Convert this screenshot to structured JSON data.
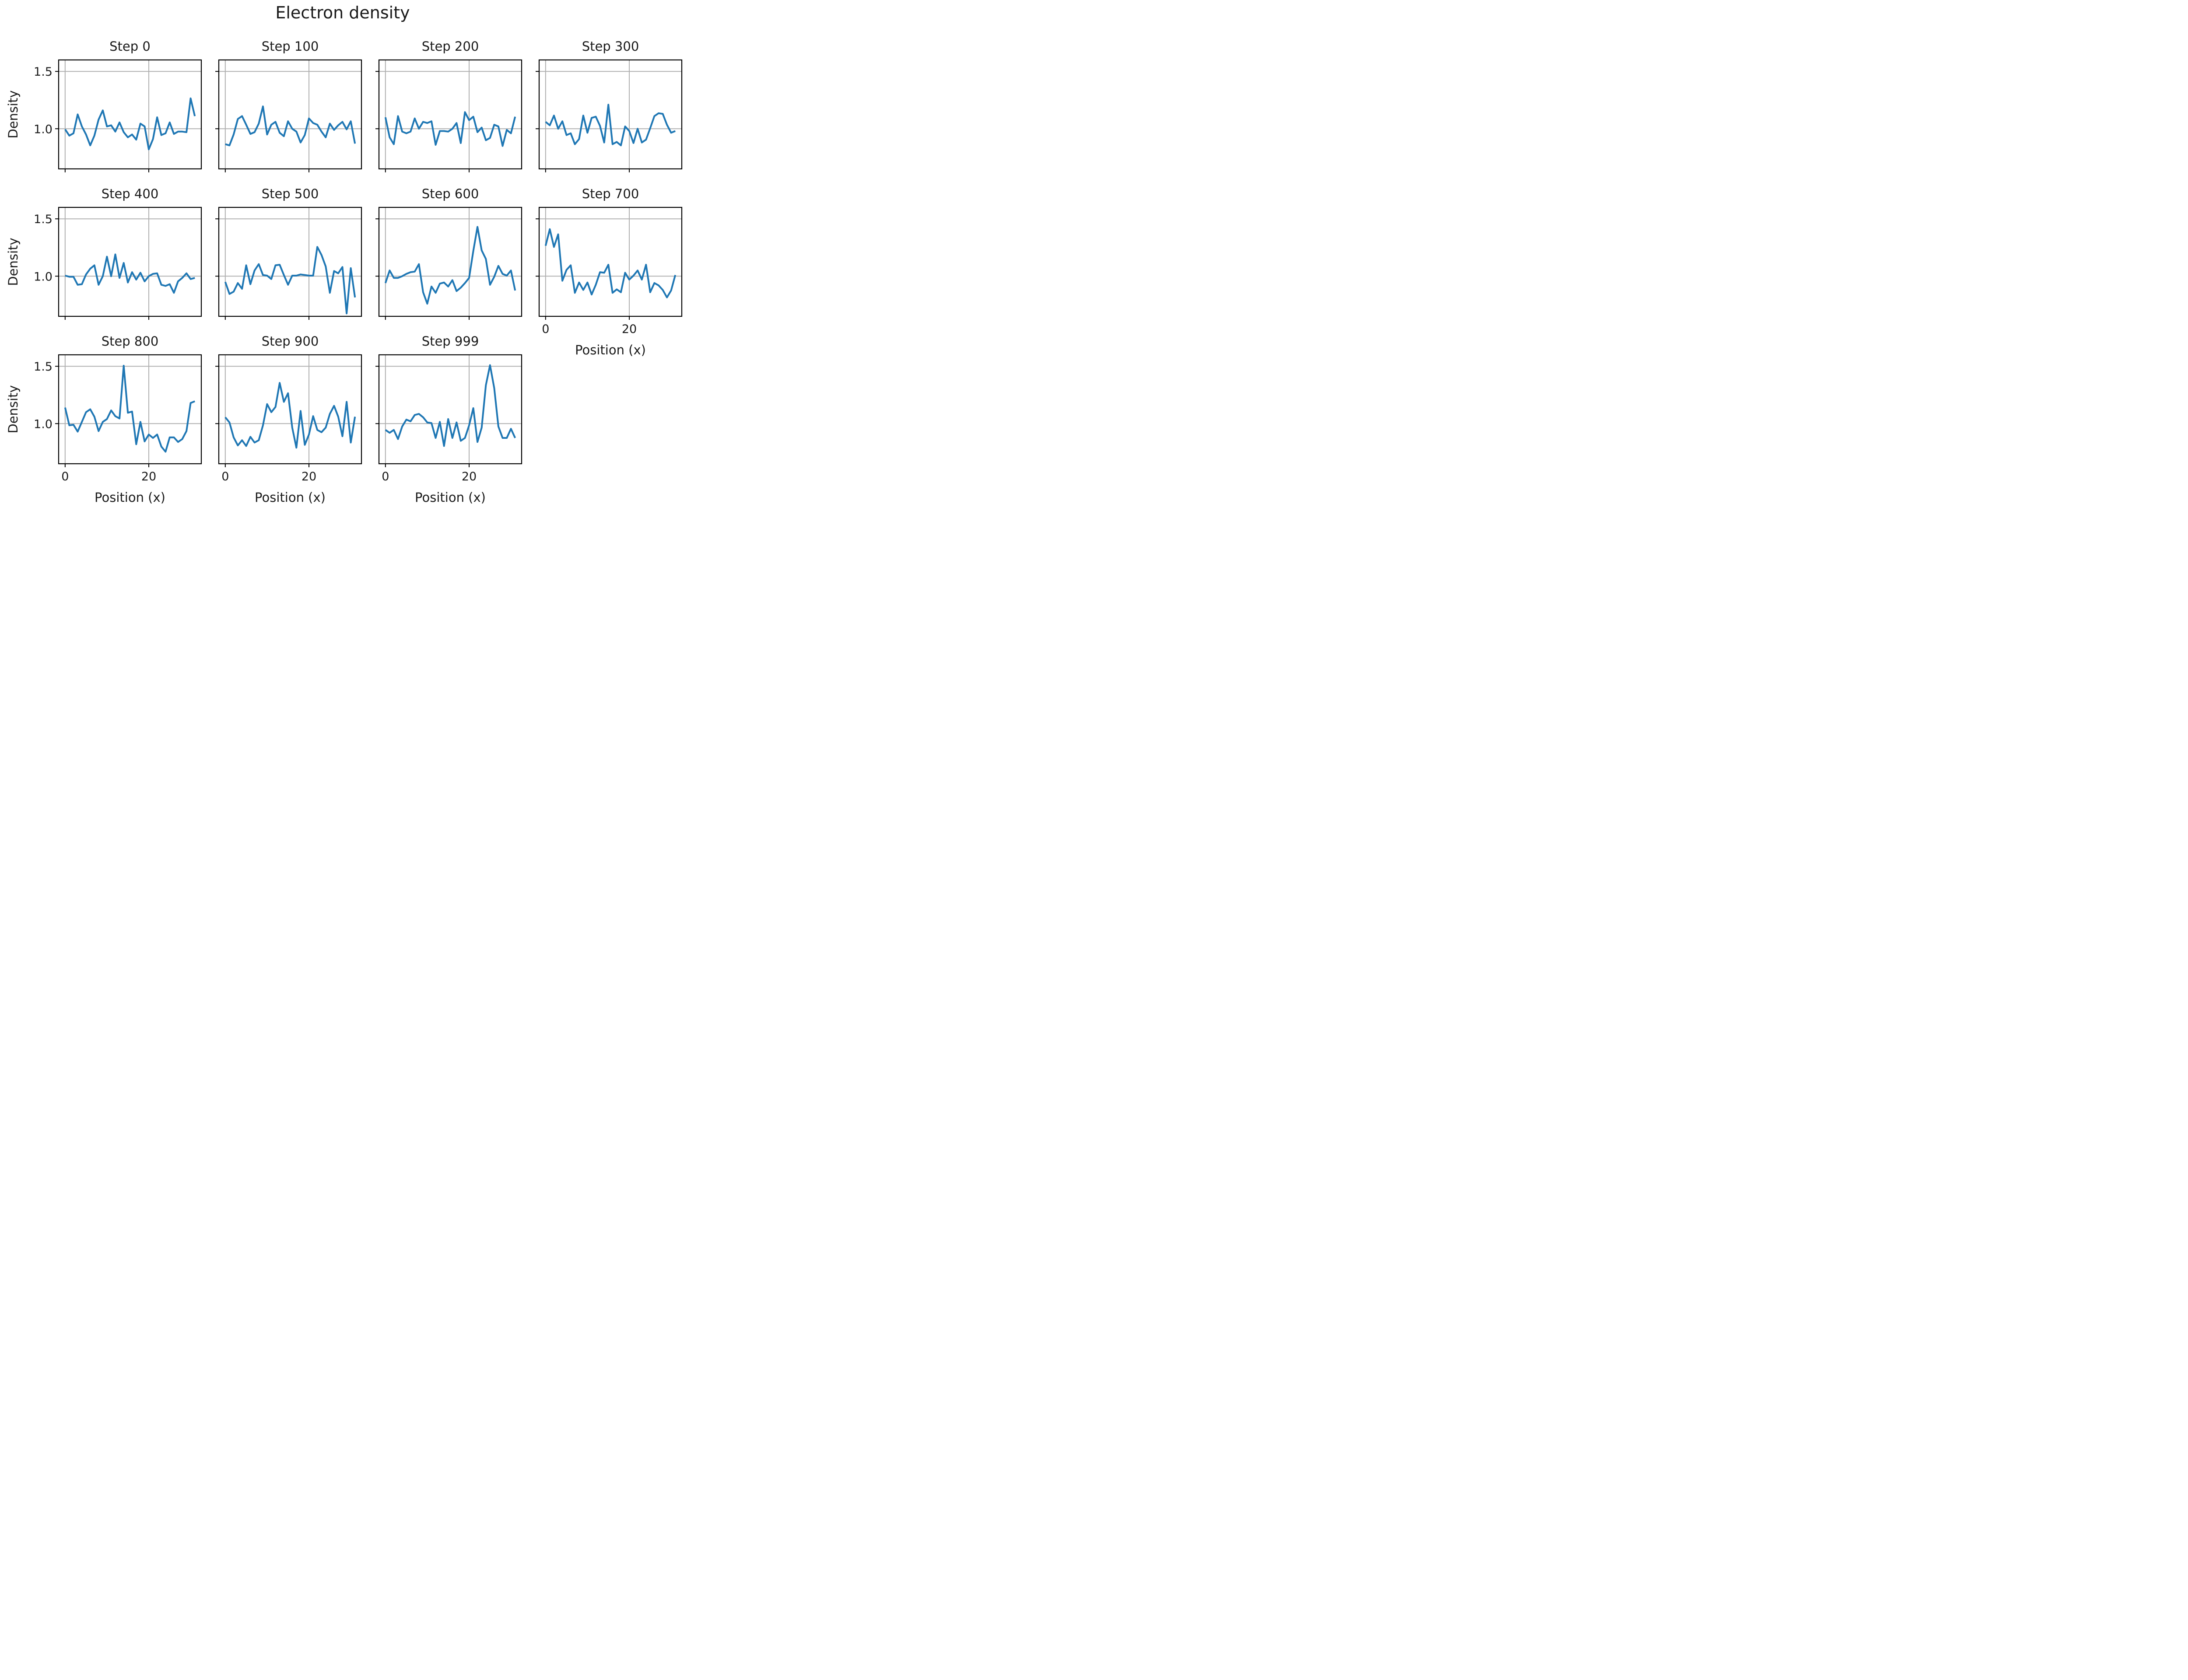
{
  "chart_data": {
    "type": "line",
    "title": "Electron density",
    "xlabel": "Position (x)",
    "ylabel": "Density",
    "xlim": [
      -1.55,
      32.55
    ],
    "ylim": [
      0.65,
      1.6
    ],
    "xticks": [
      0,
      20
    ],
    "yticks": [
      1.0,
      1.5
    ],
    "grid": true,
    "line_color": "#1f77b4",
    "x": [
      0,
      1,
      2,
      3,
      4,
      5,
      6,
      7,
      8,
      9,
      10,
      11,
      12,
      13,
      14,
      15,
      16,
      17,
      18,
      19,
      20,
      21,
      22,
      23,
      24,
      25,
      26,
      27,
      28,
      29,
      30,
      31
    ],
    "panels": [
      {
        "title": "Step 0",
        "values": [
          0.995,
          0.94,
          0.96,
          1.125,
          1.02,
          0.95,
          0.855,
          0.94,
          1.08,
          1.16,
          1.02,
          1.03,
          0.975,
          1.055,
          0.97,
          0.925,
          0.95,
          0.905,
          1.045,
          1.02,
          0.82,
          0.91,
          1.1,
          0.945,
          0.96,
          1.055,
          0.955,
          0.975,
          0.975,
          0.97,
          1.265,
          1.11
        ]
      },
      {
        "title": "Step 100",
        "values": [
          0.865,
          0.855,
          0.95,
          1.085,
          1.11,
          1.035,
          0.955,
          0.97,
          1.045,
          1.195,
          0.95,
          1.035,
          1.06,
          0.965,
          0.935,
          1.065,
          1.0,
          0.975,
          0.88,
          0.945,
          1.09,
          1.05,
          1.035,
          0.975,
          0.925,
          1.045,
          0.99,
          1.03,
          1.06,
          0.995,
          1.065,
          0.87
        ]
      },
      {
        "title": "Step 200",
        "values": [
          1.1,
          0.925,
          0.865,
          1.11,
          0.975,
          0.96,
          0.975,
          1.09,
          1.0,
          1.06,
          1.05,
          1.065,
          0.86,
          0.98,
          0.98,
          0.975,
          1.0,
          1.05,
          0.875,
          1.145,
          1.075,
          1.105,
          0.97,
          1.01,
          0.9,
          0.92,
          1.035,
          1.02,
          0.85,
          0.99,
          0.96,
          1.105
        ]
      },
      {
        "title": "Step 300",
        "values": [
          1.06,
          1.03,
          1.115,
          1.0,
          1.065,
          0.945,
          0.96,
          0.865,
          0.91,
          1.115,
          0.965,
          1.095,
          1.105,
          1.025,
          0.88,
          1.21,
          0.865,
          0.885,
          0.855,
          1.02,
          0.98,
          0.875,
          1.0,
          0.88,
          0.905,
          1.005,
          1.11,
          1.135,
          1.13,
          1.035,
          0.965,
          0.98
        ]
      },
      {
        "title": "Step 400",
        "values": [
          1.005,
          0.995,
          0.995,
          0.925,
          0.93,
          1.015,
          1.065,
          1.095,
          0.925,
          1.0,
          1.17,
          1.0,
          1.19,
          0.985,
          1.115,
          0.945,
          1.035,
          0.97,
          1.03,
          0.955,
          1.0,
          1.02,
          1.025,
          0.925,
          0.915,
          0.93,
          0.855,
          0.955,
          0.985,
          1.025,
          0.975,
          0.985
        ]
      },
      {
        "title": "Step 500",
        "values": [
          0.95,
          0.845,
          0.865,
          0.94,
          0.89,
          1.095,
          0.93,
          1.05,
          1.105,
          1.01,
          1.005,
          0.975,
          1.095,
          1.1,
          1.01,
          0.925,
          1.005,
          1.005,
          1.015,
          1.01,
          1.005,
          1.005,
          1.255,
          1.185,
          1.085,
          0.855,
          1.045,
          1.025,
          1.08,
          0.675,
          1.07,
          0.815
        ]
      },
      {
        "title": "Step 600",
        "values": [
          0.94,
          1.05,
          0.985,
          0.985,
          1.0,
          1.02,
          1.035,
          1.04,
          1.105,
          0.86,
          0.76,
          0.91,
          0.855,
          0.935,
          0.945,
          0.91,
          0.965,
          0.87,
          0.9,
          0.94,
          0.985,
          1.22,
          1.43,
          1.225,
          1.15,
          0.925,
          0.995,
          1.09,
          1.02,
          1.005,
          1.05,
          0.875
        ]
      },
      {
        "title": "Step 700",
        "values": [
          1.265,
          1.41,
          1.255,
          1.365,
          0.96,
          1.055,
          1.095,
          0.855,
          0.945,
          0.88,
          0.945,
          0.84,
          0.925,
          1.035,
          1.03,
          1.1,
          0.855,
          0.885,
          0.86,
          1.03,
          0.97,
          1.005,
          1.05,
          0.97,
          1.1,
          0.86,
          0.94,
          0.92,
          0.88,
          0.815,
          0.875,
          1.01
        ]
      },
      {
        "title": "Step 800",
        "values": [
          1.14,
          0.985,
          0.99,
          0.93,
          1.015,
          1.1,
          1.125,
          1.06,
          0.935,
          1.015,
          1.04,
          1.115,
          1.065,
          1.045,
          1.505,
          1.095,
          1.105,
          0.82,
          1.015,
          0.845,
          0.905,
          0.875,
          0.905,
          0.8,
          0.755,
          0.88,
          0.88,
          0.84,
          0.865,
          0.935,
          1.18,
          1.195
        ]
      },
      {
        "title": "Step 900",
        "values": [
          1.055,
          1.01,
          0.88,
          0.81,
          0.855,
          0.805,
          0.885,
          0.835,
          0.855,
          0.985,
          1.17,
          1.1,
          1.145,
          1.355,
          1.19,
          1.265,
          0.965,
          0.79,
          1.11,
          0.815,
          0.905,
          1.065,
          0.945,
          0.925,
          0.965,
          1.085,
          1.155,
          1.06,
          0.89,
          1.19,
          0.835,
          1.06
        ]
      },
      {
        "title": "Step 999",
        "values": [
          0.945,
          0.92,
          0.945,
          0.865,
          0.975,
          1.035,
          1.02,
          1.075,
          1.085,
          1.055,
          1.01,
          1.005,
          0.875,
          1.015,
          0.805,
          1.04,
          0.875,
          1.01,
          0.85,
          0.875,
          0.985,
          1.135,
          0.84,
          0.965,
          1.335,
          1.51,
          1.31,
          0.975,
          0.875,
          0.875,
          0.955,
          0.875
        ]
      }
    ]
  }
}
